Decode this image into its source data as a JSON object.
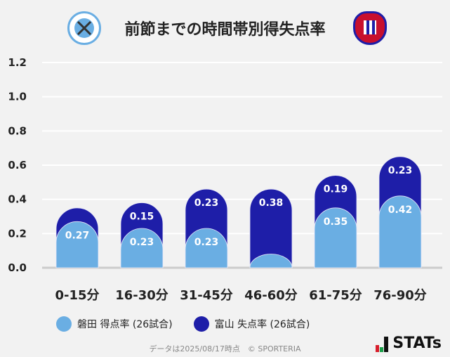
{
  "title": "前節までの時間帯別得失点率",
  "chart_data": {
    "type": "bar",
    "stacked": true,
    "categories": [
      "0-15分",
      "16-30分",
      "31-45分",
      "46-60分",
      "61-75分",
      "76-90分"
    ],
    "series": [
      {
        "name": "磐田 得点率 (26試合)",
        "color": "#6aaee3",
        "values": [
          0.27,
          0.23,
          0.23,
          0.08,
          0.35,
          0.42
        ],
        "labels": [
          "0.27",
          "0.23",
          "0.23",
          "",
          "0.35",
          "0.42"
        ]
      },
      {
        "name": "富山 失点率 (26試合)",
        "color": "#1e1ea8",
        "values": [
          0.08,
          0.15,
          0.23,
          0.38,
          0.19,
          0.23
        ],
        "labels": [
          "",
          "0.15",
          "0.23",
          "0.38",
          "0.19",
          "0.23"
        ]
      }
    ],
    "ylim": [
      0,
      1.2
    ],
    "yticks": [
      "0.0",
      "0.2",
      "0.4",
      "0.6",
      "0.8",
      "1.0",
      "1.2"
    ],
    "grid": true,
    "legend": "bottom"
  },
  "footer": "データは2025/08/17時点　© SPORTERIA",
  "brand": "STATs",
  "teams": {
    "home_logo": "Jubilo Iwata crest",
    "away_logo": "Kataller Toyama crest"
  }
}
